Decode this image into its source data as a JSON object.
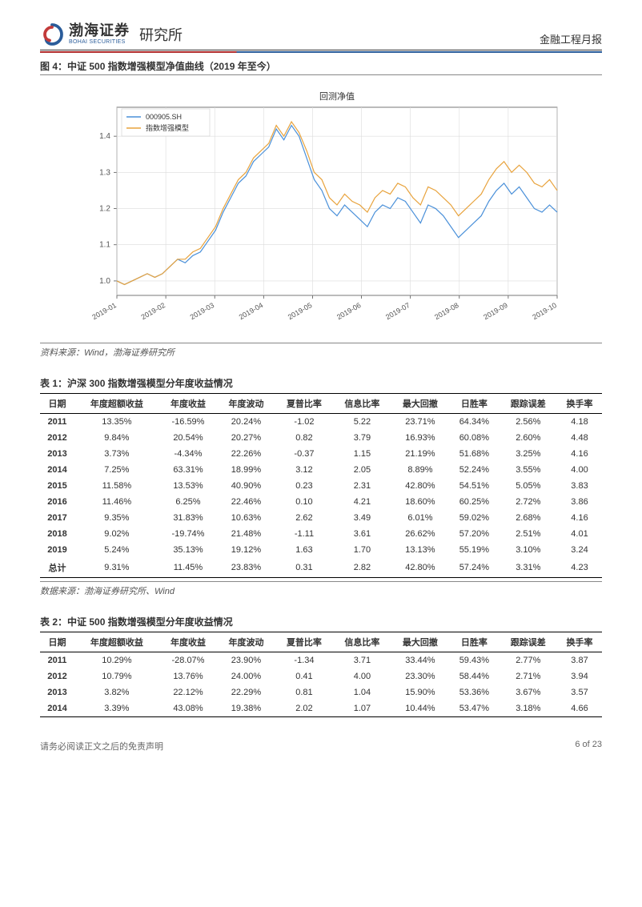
{
  "header": {
    "company_cn": "渤海证券",
    "company_en": "BOHAI SECURITIES",
    "institute": "研究所",
    "doc_type": "金融工程月报"
  },
  "figure": {
    "label": "图 4：中证 500 指数增强模型净值曲线（2019 年至今）",
    "chart": {
      "type": "line",
      "title": "回测净值",
      "title_fontsize": 11,
      "background_color": "#ffffff",
      "grid_color": "#dcdcdc",
      "axis_color": "#555555",
      "ylim": [
        0.96,
        1.48
      ],
      "yticks": [
        1.0,
        1.1,
        1.2,
        1.3,
        1.4
      ],
      "xticks": [
        "2019-01",
        "2019-02",
        "2019-03",
        "2019-04",
        "2019-05",
        "2019-06",
        "2019-07",
        "2019-08",
        "2019-09",
        "2019-10"
      ],
      "legend": {
        "position": "upper-left",
        "items": [
          "000905.SH",
          "指数增强模型"
        ]
      },
      "series": [
        {
          "name": "000905.SH",
          "color": "#4a90d9",
          "width": 1.2,
          "y": [
            1.0,
            0.99,
            1.0,
            1.01,
            1.02,
            1.01,
            1.02,
            1.04,
            1.06,
            1.05,
            1.07,
            1.08,
            1.11,
            1.14,
            1.19,
            1.23,
            1.27,
            1.29,
            1.33,
            1.35,
            1.37,
            1.42,
            1.39,
            1.43,
            1.4,
            1.34,
            1.28,
            1.25,
            1.2,
            1.18,
            1.21,
            1.19,
            1.17,
            1.15,
            1.19,
            1.21,
            1.2,
            1.23,
            1.22,
            1.19,
            1.16,
            1.21,
            1.2,
            1.18,
            1.15,
            1.12,
            1.14,
            1.16,
            1.18,
            1.22,
            1.25,
            1.27,
            1.24,
            1.26,
            1.23,
            1.2,
            1.19,
            1.21,
            1.19
          ]
        },
        {
          "name": "指数增强模型",
          "color": "#e8a33d",
          "width": 1.2,
          "y": [
            1.0,
            0.99,
            1.0,
            1.01,
            1.02,
            1.01,
            1.02,
            1.04,
            1.06,
            1.06,
            1.08,
            1.09,
            1.12,
            1.15,
            1.2,
            1.24,
            1.28,
            1.3,
            1.34,
            1.36,
            1.38,
            1.43,
            1.4,
            1.44,
            1.41,
            1.36,
            1.3,
            1.28,
            1.23,
            1.21,
            1.24,
            1.22,
            1.21,
            1.19,
            1.23,
            1.25,
            1.24,
            1.27,
            1.26,
            1.23,
            1.21,
            1.26,
            1.25,
            1.23,
            1.21,
            1.18,
            1.2,
            1.22,
            1.24,
            1.28,
            1.31,
            1.33,
            1.3,
            1.32,
            1.3,
            1.27,
            1.26,
            1.28,
            1.25
          ]
        }
      ]
    },
    "source": "资料来源：Wind，渤海证券研究所"
  },
  "table1": {
    "label": "表 1：沪深 300 指数增强模型分年度收益情况",
    "columns": [
      "日期",
      "年度超额收益",
      "年度收益",
      "年度波动",
      "夏普比率",
      "信息比率",
      "最大回撤",
      "日胜率",
      "跟踪误差",
      "换手率"
    ],
    "rows": [
      [
        "2011",
        "13.35%",
        "-16.59%",
        "20.24%",
        "-1.02",
        "5.22",
        "23.71%",
        "64.34%",
        "2.56%",
        "4.18"
      ],
      [
        "2012",
        "9.84%",
        "20.54%",
        "20.27%",
        "0.82",
        "3.79",
        "16.93%",
        "60.08%",
        "2.60%",
        "4.48"
      ],
      [
        "2013",
        "3.73%",
        "-4.34%",
        "22.26%",
        "-0.37",
        "1.15",
        "21.19%",
        "51.68%",
        "3.25%",
        "4.16"
      ],
      [
        "2014",
        "7.25%",
        "63.31%",
        "18.99%",
        "3.12",
        "2.05",
        "8.89%",
        "52.24%",
        "3.55%",
        "4.00"
      ],
      [
        "2015",
        "11.58%",
        "13.53%",
        "40.90%",
        "0.23",
        "2.31",
        "42.80%",
        "54.51%",
        "5.05%",
        "3.83"
      ],
      [
        "2016",
        "11.46%",
        "6.25%",
        "22.46%",
        "0.10",
        "4.21",
        "18.60%",
        "60.25%",
        "2.72%",
        "3.86"
      ],
      [
        "2017",
        "9.35%",
        "31.83%",
        "10.63%",
        "2.62",
        "3.49",
        "6.01%",
        "59.02%",
        "2.68%",
        "4.16"
      ],
      [
        "2018",
        "9.02%",
        "-19.74%",
        "21.48%",
        "-1.11",
        "3.61",
        "26.62%",
        "57.20%",
        "2.51%",
        "4.01"
      ],
      [
        "2019",
        "5.24%",
        "35.13%",
        "19.12%",
        "1.63",
        "1.70",
        "13.13%",
        "55.19%",
        "3.10%",
        "3.24"
      ],
      [
        "总计",
        "9.31%",
        "11.45%",
        "23.83%",
        "0.31",
        "2.82",
        "42.80%",
        "57.24%",
        "3.31%",
        "4.23"
      ]
    ],
    "source": "数据来源：渤海证券研究所、Wind"
  },
  "table2": {
    "label": "表 2：中证 500 指数增强模型分年度收益情况",
    "columns": [
      "日期",
      "年度超额收益",
      "年度收益",
      "年度波动",
      "夏普比率",
      "信息比率",
      "最大回撤",
      "日胜率",
      "跟踪误差",
      "换手率"
    ],
    "rows": [
      [
        "2011",
        "10.29%",
        "-28.07%",
        "23.90%",
        "-1.34",
        "3.71",
        "33.44%",
        "59.43%",
        "2.77%",
        "3.87"
      ],
      [
        "2012",
        "10.79%",
        "13.76%",
        "24.00%",
        "0.41",
        "4.00",
        "23.30%",
        "58.44%",
        "2.71%",
        "3.94"
      ],
      [
        "2013",
        "3.82%",
        "22.12%",
        "22.29%",
        "0.81",
        "1.04",
        "15.90%",
        "53.36%",
        "3.67%",
        "3.57"
      ],
      [
        "2014",
        "3.39%",
        "43.08%",
        "19.38%",
        "2.02",
        "1.07",
        "10.44%",
        "53.47%",
        "3.18%",
        "4.66"
      ]
    ]
  },
  "footer": {
    "disclaimer": "请务必阅读正文之后的免责声明",
    "page": "6 of 23"
  }
}
